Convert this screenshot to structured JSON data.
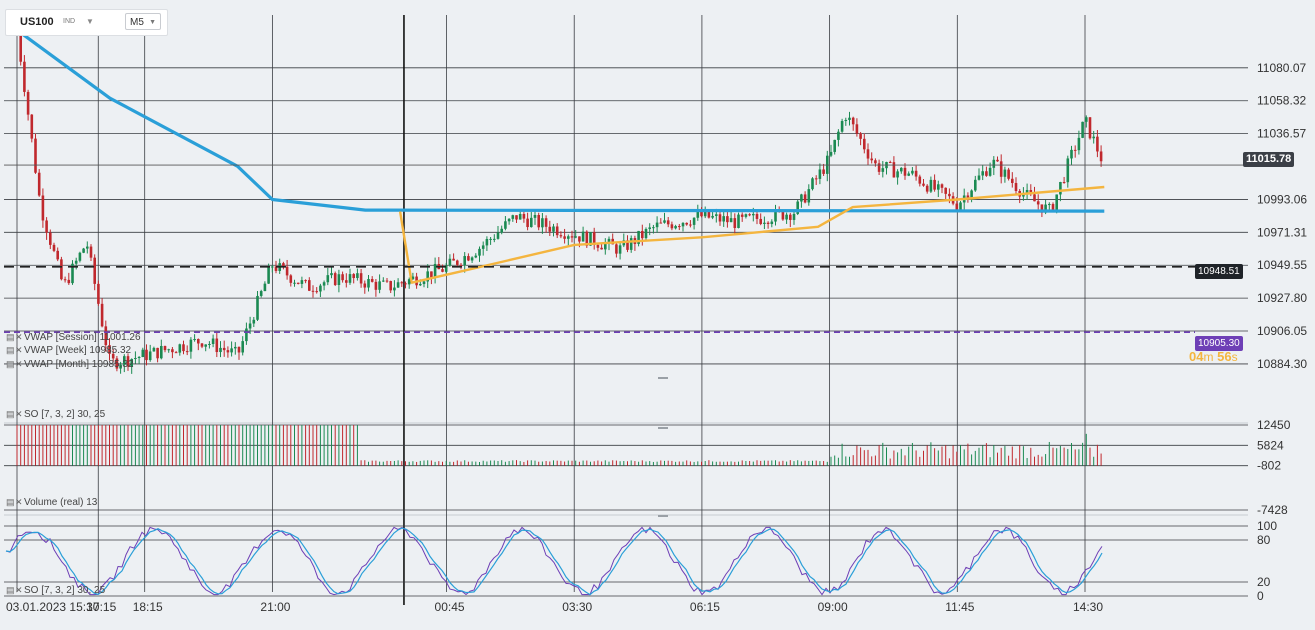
{
  "symbol": {
    "name": "US100",
    "type": "IND",
    "timeframe": "M5"
  },
  "price_axis": {
    "ticks": [
      "11080.07",
      "11058.32",
      "11036.57",
      "10993.06",
      "10971.31",
      "10949.55",
      "10927.80",
      "10906.05",
      "10884.30"
    ],
    "current_price": "11015.78",
    "dashed_level": "10948.51",
    "purple_level": "10905.30",
    "timer": {
      "min": "04",
      "min_unit": "m",
      "sec": "56",
      "sec_unit": "s"
    }
  },
  "volume_axis": {
    "ticks": [
      "12450",
      "5824",
      "-802",
      "-7428"
    ]
  },
  "stoch_axis": {
    "ticks": [
      "100",
      "80",
      "20",
      "0"
    ]
  },
  "time_axis": {
    "ticks": [
      "03.01.2023  15:30",
      "18:15",
      "21:00",
      "00:45",
      "03:30",
      "06:15",
      "09:00",
      "11:45",
      "14:30",
      "17:15"
    ]
  },
  "indicators": {
    "vwap_session": "VWAP  [Session]  11001.26",
    "vwap_week": "VWAP  [Week]  10985.32",
    "vwap_month": "VWAP  [Month]  10985.32",
    "so_top": "SO  [7, 3, 2]  30, 25",
    "volume": "Volume  (real)  13",
    "so_bottom": "SO  [7, 3, 2]  30, 25"
  },
  "colors": {
    "bull": "#1b8a52",
    "bear": "#c0282d",
    "vwap_session": "#f4b53f",
    "vwap_week_month": "#2a9fd8",
    "current_tag": "#3b3f46",
    "dashed_tag": "#1f2328",
    "purple_tag": "#6e3fb6",
    "stoch_k": "#6e3fb6",
    "stoch_d": "#2a9fd8"
  },
  "chart_data": {
    "type": "candlestick",
    "instrument": "US100",
    "timeframe": "M5",
    "y_range": [
      10875,
      11115
    ],
    "close_path": [
      {
        "t": "15:30",
        "price": 11105
      },
      {
        "t": "16:00",
        "price": 10990
      },
      {
        "t": "16:30",
        "price": 10935
      },
      {
        "t": "17:00",
        "price": 10965
      },
      {
        "t": "17:30",
        "price": 10885
      },
      {
        "t": "18:15",
        "price": 10890
      },
      {
        "t": "19:30",
        "price": 10900
      },
      {
        "t": "20:15",
        "price": 10890
      },
      {
        "t": "21:00",
        "price": 10950
      },
      {
        "t": "21:45",
        "price": 10935
      },
      {
        "t": "22:30",
        "price": 10942
      },
      {
        "t": "23:30",
        "price": 10935
      },
      {
        "t": "00:45",
        "price": 10948
      },
      {
        "t": "01:30",
        "price": 10962
      },
      {
        "t": "02:15",
        "price": 10982
      },
      {
        "t": "03:30",
        "price": 10970
      },
      {
        "t": "04:30",
        "price": 10960
      },
      {
        "t": "05:15",
        "price": 10975
      },
      {
        "t": "06:15",
        "price": 10982
      },
      {
        "t": "07:00",
        "price": 10978
      },
      {
        "t": "08:15",
        "price": 10985
      },
      {
        "t": "09:00",
        "price": 11020
      },
      {
        "t": "09:20",
        "price": 11050
      },
      {
        "t": "10:00",
        "price": 11015
      },
      {
        "t": "10:45",
        "price": 11010
      },
      {
        "t": "11:45",
        "price": 10990
      },
      {
        "t": "12:30",
        "price": 11018
      },
      {
        "t": "13:15",
        "price": 10995
      },
      {
        "t": "13:45",
        "price": 10985
      },
      {
        "t": "14:30",
        "price": 11045
      },
      {
        "t": "14:55",
        "price": 11015.78
      }
    ],
    "vwap_session": [
      {
        "t": "23:45",
        "price": 10985
      },
      {
        "t": "00:00",
        "price": 10938
      },
      {
        "t": "01:00",
        "price": 10945
      },
      {
        "t": "03:30",
        "price": 10963
      },
      {
        "t": "06:15",
        "price": 10968
      },
      {
        "t": "08:45",
        "price": 10975
      },
      {
        "t": "09:30",
        "price": 10988
      },
      {
        "t": "11:45",
        "price": 10993
      },
      {
        "t": "14:55",
        "price": 11001.26
      }
    ],
    "vwap_week_month": [
      {
        "t": "15:30",
        "price": 11105
      },
      {
        "t": "17:30",
        "price": 11060
      },
      {
        "t": "20:15",
        "price": 11015
      },
      {
        "t": "21:00",
        "price": 10993
      },
      {
        "t": "23:00",
        "price": 10986
      },
      {
        "t": "14:55",
        "price": 10985.32
      }
    ],
    "levels": {
      "dashed": 10948.51,
      "purple": 10905.3
    },
    "volume_range": [
      -7428,
      12450
    ],
    "stoch_range": [
      0,
      100
    ]
  }
}
